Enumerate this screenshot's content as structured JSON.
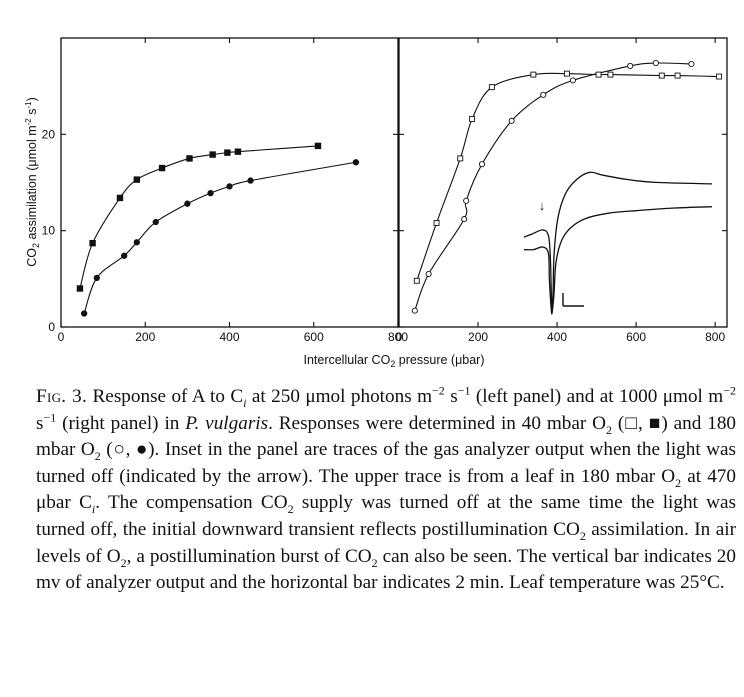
{
  "chart_data": [
    {
      "type": "scatter",
      "panel": "left",
      "xlabel_parts": [
        "Intercellular CO",
        "2",
        " pressure (μbar)"
      ],
      "ylabel_parts": [
        "CO",
        "2",
        " assimilation (μmol m",
        "-2",
        " s",
        "-1",
        ")"
      ],
      "xlim": [
        0,
        800
      ],
      "ylim": [
        0,
        30
      ],
      "xticks": [
        0,
        200,
        400,
        600,
        800
      ],
      "xtick_labels": [
        "0",
        "200",
        "400",
        "600",
        "800"
      ],
      "yticks": [
        0,
        10,
        20
      ],
      "ytick_labels": [
        "0",
        "10",
        "20"
      ],
      "grid": false,
      "series": [
        {
          "marker": "square-filled",
          "x": [
            45,
            75,
            140,
            180,
            240,
            305,
            360,
            395,
            420,
            610
          ],
          "y": [
            4.0,
            8.7,
            13.4,
            15.3,
            16.5,
            17.5,
            17.9,
            18.1,
            18.2,
            18.8
          ]
        },
        {
          "marker": "circle-filled",
          "x": [
            55,
            85,
            150,
            180,
            225,
            300,
            355,
            400,
            450,
            700
          ],
          "y": [
            1.4,
            5.1,
            7.4,
            8.8,
            10.9,
            12.8,
            13.9,
            14.6,
            15.2,
            17.1
          ]
        }
      ]
    },
    {
      "type": "scatter",
      "panel": "right",
      "xlim": [
        0,
        830
      ],
      "ylim": [
        0,
        30
      ],
      "xticks": [
        0,
        200,
        400,
        600,
        800
      ],
      "xtick_labels": [
        "0",
        "200",
        "400",
        "600",
        "800"
      ],
      "grid": false,
      "series": [
        {
          "marker": "square-open",
          "x": [
            45,
            95,
            155,
            185,
            235,
            340,
            425,
            505,
            535,
            665,
            705,
            810
          ],
          "y": [
            4.8,
            10.8,
            17.5,
            21.6,
            24.9,
            26.2,
            26.3,
            26.2,
            26.2,
            26.1,
            26.1,
            26.0
          ]
        },
        {
          "marker": "circle-open",
          "x": [
            40,
            75,
            165,
            170,
            210,
            285,
            365,
            440,
            585,
            650,
            740
          ],
          "y": [
            1.7,
            5.5,
            11.2,
            13.1,
            16.9,
            21.4,
            24.1,
            25.6,
            27.1,
            27.4,
            27.3
          ]
        }
      ],
      "inset": {
        "description_arrow": "↓",
        "upper_trace": [
          [
            0,
            0.48
          ],
          [
            0.04,
            0.46
          ],
          [
            0.1,
            0.43
          ],
          [
            0.13,
            0.47
          ],
          [
            0.14,
            0.62
          ],
          [
            0.145,
            0.85
          ],
          [
            0.15,
            0.99
          ],
          [
            0.155,
            0.85
          ],
          [
            0.16,
            0.6
          ],
          [
            0.18,
            0.35
          ],
          [
            0.22,
            0.18
          ],
          [
            0.28,
            0.08
          ],
          [
            0.35,
            0.03
          ],
          [
            0.42,
            0.05
          ],
          [
            0.55,
            0.08
          ],
          [
            0.7,
            0.1
          ],
          [
            1.0,
            0.11
          ]
        ],
        "lower_trace": [
          [
            0,
            0.52
          ],
          [
            0.05,
            0.52
          ],
          [
            0.1,
            0.5
          ],
          [
            0.13,
            0.55
          ],
          [
            0.135,
            0.75
          ],
          [
            0.145,
            0.98
          ],
          [
            0.15,
            1.0
          ],
          [
            0.16,
            0.85
          ],
          [
            0.17,
            0.62
          ],
          [
            0.2,
            0.45
          ],
          [
            0.25,
            0.35
          ],
          [
            0.33,
            0.28
          ],
          [
            0.45,
            0.24
          ],
          [
            0.6,
            0.22
          ],
          [
            0.8,
            0.2
          ],
          [
            1.0,
            0.19
          ]
        ]
      }
    }
  ],
  "caption": {
    "label": "Fig. 3.",
    "runs": [
      {
        "t": " Response of A to C"
      },
      {
        "t": "i",
        "sub": true,
        "i": true
      },
      {
        "t": " at 250 μmol photons m"
      },
      {
        "t": "−2",
        "sup": true
      },
      {
        "t": " s"
      },
      {
        "t": "−1",
        "sup": true
      },
      {
        "t": " (left panel) and at 1000 μmol m"
      },
      {
        "t": "−2",
        "sup": true
      },
      {
        "t": " s"
      },
      {
        "t": "−1",
        "sup": true
      },
      {
        "t": " (right panel) in "
      },
      {
        "t": "P. vulgaris",
        "i": true
      },
      {
        "t": ". Responses were determined in 40 mbar O"
      },
      {
        "t": "2",
        "sub": true
      },
      {
        "t": " (□, ■) and 180 mbar O"
      },
      {
        "t": "2",
        "sub": true
      },
      {
        "t": " (○, ●). Inset in the panel are traces of the gas analyzer output when the light was turned off (indicated by the arrow). The upper trace is from a leaf in 180 mbar O"
      },
      {
        "t": "2",
        "sub": true
      },
      {
        "t": " at 470 μbar C"
      },
      {
        "t": "i",
        "sub": true,
        "i": true
      },
      {
        "t": ". The compensation CO"
      },
      {
        "t": "2",
        "sub": true
      },
      {
        "t": " supply was turned off at the same time the light was turned off, the initial downward transient reflects postillumination CO"
      },
      {
        "t": "2",
        "sub": true
      },
      {
        "t": " assimilation. In air levels of O"
      },
      {
        "t": "2",
        "sub": true
      },
      {
        "t": ", a postillumination burst of CO"
      },
      {
        "t": "2",
        "sub": true
      },
      {
        "t": " can also be seen. The vertical bar indicates 20 mv of analyzer output and the horizontal bar indicates 2 min. Leaf temperature was 25°C."
      }
    ]
  }
}
